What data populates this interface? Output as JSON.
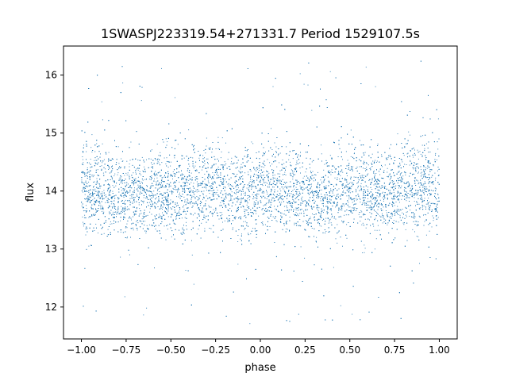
{
  "chart_data": {
    "type": "scatter",
    "title": "1SWASPJ223319.54+271331.7 Period 1529107.5s",
    "xlabel": "phase",
    "ylabel": "flux",
    "xlim": [
      -1.1,
      1.1
    ],
    "ylim": [
      11.45,
      16.5
    ],
    "x_ticks": [
      -1.0,
      -0.75,
      -0.5,
      -0.25,
      0.0,
      0.25,
      0.5,
      0.75,
      1.0
    ],
    "x_tick_labels": [
      "−1.00",
      "−0.75",
      "−0.50",
      "−0.25",
      "0.00",
      "0.25",
      "0.50",
      "0.75",
      "1.00"
    ],
    "y_ticks": [
      12,
      13,
      14,
      15,
      16
    ],
    "y_tick_labels": [
      "12",
      "13",
      "14",
      "15",
      "16"
    ],
    "grid": false,
    "legend": "none",
    "point_color": "#1f77b4",
    "series": [
      {
        "x_range": [
          -1.0,
          1.0
        ],
        "point_count_approx": 24000,
        "flux_profile": {
          "phase": [
            -1.0,
            -0.9,
            -0.8,
            -0.7,
            -0.6,
            -0.5,
            -0.4,
            -0.3,
            -0.2,
            -0.1,
            0.0,
            0.1,
            0.2,
            0.3,
            0.4,
            0.5,
            0.6,
            0.7,
            0.8,
            0.9,
            1.0
          ],
          "median": [
            13.95,
            14.0,
            13.9,
            13.95,
            14.0,
            13.95,
            14.0,
            14.05,
            14.0,
            13.95,
            13.95,
            14.0,
            14.0,
            13.95,
            13.95,
            14.0,
            13.95,
            13.95,
            14.0,
            14.05,
            14.0
          ],
          "core_low": [
            13.3,
            13.35,
            13.3,
            13.3,
            13.35,
            13.3,
            13.35,
            13.4,
            13.35,
            13.3,
            13.3,
            13.35,
            13.35,
            13.3,
            13.3,
            13.35,
            13.3,
            13.3,
            13.35,
            13.4,
            13.35
          ],
          "core_high": [
            14.7,
            14.8,
            14.6,
            14.5,
            14.7,
            14.6,
            14.7,
            14.75,
            14.7,
            14.6,
            14.6,
            14.7,
            14.65,
            14.55,
            14.65,
            14.75,
            14.6,
            14.6,
            14.8,
            14.85,
            14.8
          ]
        },
        "outlier_range": [
          11.7,
          16.25
        ]
      }
    ]
  }
}
